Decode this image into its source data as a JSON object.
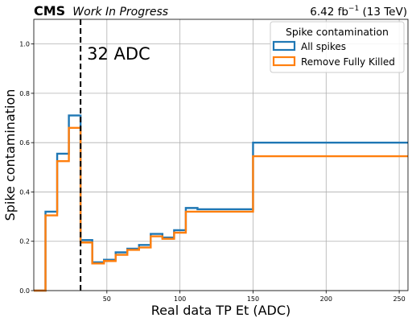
{
  "header": {
    "experiment": "CMS",
    "status": "Work In Progress",
    "lumi_prefix": "6.42 fb",
    "lumi_exp": "−1",
    "lumi_suffix": " (13 TeV)"
  },
  "annotation": {
    "text": "32 ADC",
    "x": 32
  },
  "chart_data": {
    "type": "step",
    "xlabel": "Real data TP Et (ADC)",
    "ylabel": "Spike contamination",
    "xlim": [
      0,
      256
    ],
    "ylim": [
      0,
      1.1
    ],
    "xticks": [
      50,
      100,
      150,
      200,
      250
    ],
    "yticks": [
      0.0,
      0.2,
      0.4,
      0.6,
      0.8,
      1.0
    ],
    "ytick_labels": [
      "0.0",
      "0.2",
      "0.4",
      "0.6",
      "0.8",
      "1.0"
    ],
    "grid": true,
    "legend": {
      "title": "Spike contamination",
      "placement": "top-right"
    },
    "bin_edges": [
      0,
      8,
      16,
      24,
      32,
      40,
      48,
      56,
      64,
      72,
      80,
      88,
      96,
      104,
      112,
      150,
      256
    ],
    "series": [
      {
        "name": "All spikes",
        "color": "#1f77b4",
        "values": [
          0.0,
          0.32,
          0.555,
          0.71,
          0.205,
          0.115,
          0.125,
          0.155,
          0.17,
          0.185,
          0.23,
          0.215,
          0.245,
          0.335,
          0.33,
          0.6
        ]
      },
      {
        "name": "Remove Fully Killed",
        "color": "#ff7f0e",
        "values": [
          0.0,
          0.305,
          0.525,
          0.66,
          0.195,
          0.11,
          0.12,
          0.145,
          0.165,
          0.175,
          0.22,
          0.21,
          0.235,
          0.32,
          0.32,
          0.545
        ]
      }
    ]
  }
}
